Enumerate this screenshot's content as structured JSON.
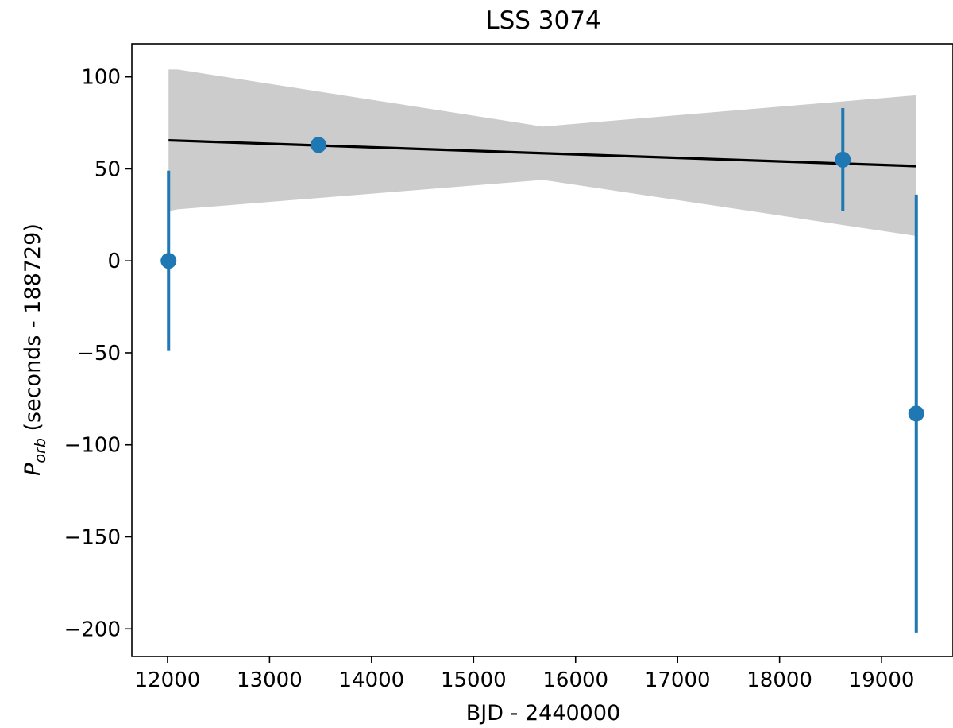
{
  "chart_data": {
    "type": "scatter",
    "title": "LSS 3074",
    "xlabel": "BJD - 2440000",
    "ylabel": {
      "symbol": "P",
      "subscript": "orb",
      "rest": " (seconds - 188729)"
    },
    "xlim": [
      11650,
      19700
    ],
    "ylim": [
      -215,
      118
    ],
    "xticks": [
      12000,
      13000,
      14000,
      15000,
      16000,
      17000,
      18000,
      19000
    ],
    "yticks": [
      100,
      50,
      0,
      -50,
      -100,
      -150,
      -200
    ],
    "ytick_labels": [
      "100",
      "50",
      "0",
      "−50",
      "−100",
      "−150",
      "−200"
    ],
    "grid": false,
    "points": [
      {
        "x": 12010,
        "y": 0,
        "yerr": 49
      },
      {
        "x": 13480,
        "y": 63,
        "yerr": 0
      },
      {
        "x": 18620,
        "y": 55,
        "yerr": 28
      },
      {
        "x": 19340,
        "y": -83,
        "yerr": 119
      }
    ],
    "fit_line": {
      "x": [
        12010,
        19340
      ],
      "y": [
        65.5,
        51.5
      ]
    },
    "confidence_band": {
      "x": [
        12010,
        12100,
        15680,
        19340
      ],
      "upper": [
        104,
        104,
        73,
        90
      ],
      "lower": [
        27,
        28,
        44,
        13.5
      ]
    },
    "colors": {
      "points": "#1f77b4",
      "fit_line": "#000000",
      "band": "#cccccc"
    }
  }
}
